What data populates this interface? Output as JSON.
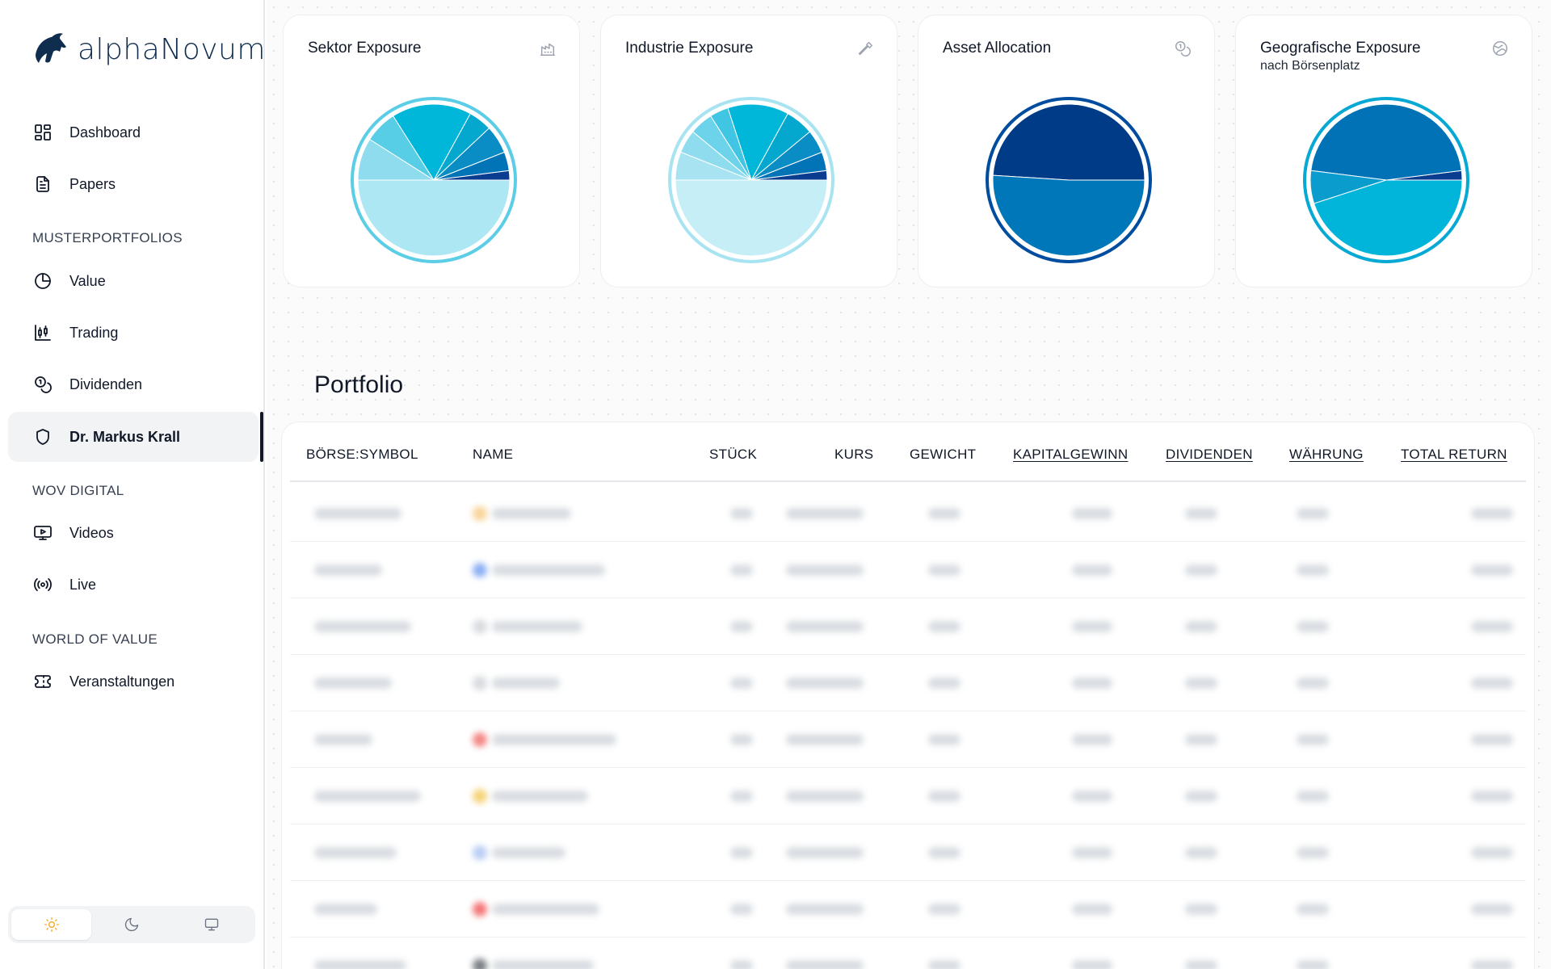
{
  "brand": {
    "name": "alphaNovum"
  },
  "sidebar": {
    "items": [
      {
        "label": "Dashboard",
        "icon": "dashboard-grid-icon"
      },
      {
        "label": "Papers",
        "icon": "document-icon"
      }
    ],
    "sections": [
      {
        "label": "MUSTERPORTFOLIOS",
        "items": [
          {
            "label": "Value",
            "icon": "pie-chart-icon"
          },
          {
            "label": "Trading",
            "icon": "candlestick-icon"
          },
          {
            "label": "Dividenden",
            "icon": "coins-icon"
          },
          {
            "label": "Dr. Markus Krall",
            "icon": "shield-icon",
            "active": true
          }
        ]
      },
      {
        "label": "WOV DIGITAL",
        "items": [
          {
            "label": "Videos",
            "icon": "video-screen-icon"
          },
          {
            "label": "Live",
            "icon": "broadcast-icon"
          }
        ]
      },
      {
        "label": "WORLD OF VALUE",
        "items": [
          {
            "label": "Veranstaltungen",
            "icon": "ticket-icon"
          }
        ]
      }
    ],
    "theme": {
      "options": [
        "light-sun-icon",
        "dark-moon-icon",
        "system-monitor-icon"
      ],
      "selected": "light",
      "accent": "#f5a623"
    }
  },
  "cards": [
    {
      "title": "Sektor Exposure",
      "subtitle": "",
      "icon": "industry-chart-icon"
    },
    {
      "title": "Industrie Exposure",
      "subtitle": "",
      "icon": "hammer-icon"
    },
    {
      "title": "Asset Allocation",
      "subtitle": "",
      "icon": "coins-icon"
    },
    {
      "title": "Geografische Exposure",
      "subtitle": "nach Börsenplatz",
      "icon": "globe-icon"
    }
  ],
  "chart_data": [
    {
      "type": "pie",
      "values": [
        2,
        4,
        6,
        5,
        17,
        7,
        9,
        50
      ],
      "colors": [
        "#0a3d8f",
        "#0074b7",
        "#0a8cc4",
        "#04a8cf",
        "#00b7da",
        "#58cde6",
        "#8fdcee",
        "#ade7f3"
      ],
      "ring": "#5ccde6"
    },
    {
      "type": "pie",
      "values": [
        2,
        4,
        5,
        6,
        13,
        4,
        5,
        5,
        6,
        50
      ],
      "colors": [
        "#0a3d8f",
        "#0074b7",
        "#0a8cc4",
        "#04a8cf",
        "#00b7da",
        "#40c6e2",
        "#6dd3ea",
        "#8fdcee",
        "#a8e3f1",
        "#c6eef7"
      ],
      "ring": "#a8e3f1"
    },
    {
      "type": "pie",
      "values": [
        49,
        51
      ],
      "colors": [
        "#003b88",
        "#0077b8"
      ],
      "ring": "#004c9e"
    },
    {
      "type": "pie",
      "values": [
        2,
        46,
        7,
        45
      ],
      "colors": [
        "#0a3d8f",
        "#0072b5",
        "#0a9ccc",
        "#00b4da"
      ],
      "ring": "#06a8d4"
    }
  ],
  "portfolio": {
    "title": "Portfolio",
    "columns": [
      {
        "label": "BÖRSE:SYMBOL",
        "sortable": false
      },
      {
        "label": "NAME",
        "sortable": false
      },
      {
        "label": "STÜCK",
        "sortable": false
      },
      {
        "label": "KURS",
        "sortable": false
      },
      {
        "label": "GEWICHT",
        "sortable": false
      },
      {
        "label": "KAPITALGEWINN",
        "sortable": true
      },
      {
        "label": "DIVIDENDEN",
        "sortable": true
      },
      {
        "label": "WÄHRUNG",
        "sortable": true
      },
      {
        "label": "TOTAL RETURN",
        "sortable": true
      }
    ],
    "rows_blurred": 9,
    "row_icon_colors": [
      "#f5c26b",
      "#5b8def",
      "#c8ccd2",
      "#c8ccd2",
      "#ef5350",
      "#f0c040",
      "#9bb8f0",
      "#ef3b3b",
      "#444a52"
    ]
  }
}
